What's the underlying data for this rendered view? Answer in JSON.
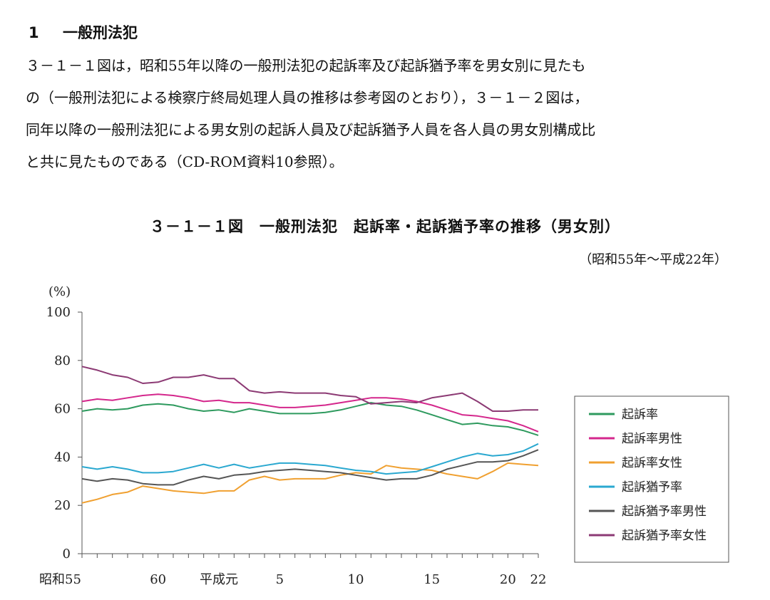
{
  "section": {
    "number": "1",
    "title": "一般刑法犯"
  },
  "paragraph": {
    "lines": [
      "３－１－１図は，昭和55年以降の一般刑法犯の起訴率及び起訴猶予率を男女別に見たも",
      "の（一般刑法犯による検察庁終局処理人員の推移は参考図のとおり），３－１－２図は，",
      "同年以降の一般刑法犯による男女別の起訴人員及び起訴猶予人員を各人員の男女別構成比",
      "と共に見たものである（CD-ROM資料10参照）。"
    ]
  },
  "figure": {
    "title": "３－１－１図　一般刑法犯　起訴率・起訴猶予率の推移（男女別）",
    "period": "（昭和55年～平成22年）"
  },
  "chart_data": {
    "type": "line",
    "ylabel": "(%)",
    "ylim": [
      0,
      100
    ],
    "yticks": [
      0,
      20,
      40,
      60,
      80,
      100
    ],
    "x": [
      1980,
      1981,
      1982,
      1983,
      1984,
      1985,
      1986,
      1987,
      1988,
      1989,
      1990,
      1991,
      1992,
      1993,
      1994,
      1995,
      1996,
      1997,
      1998,
      1999,
      2000,
      2001,
      2002,
      2003,
      2004,
      2005,
      2006,
      2007,
      2008,
      2009,
      2010
    ],
    "xticks": [
      {
        "x": 1980,
        "label": "昭和55"
      },
      {
        "x": 1985,
        "label": "60"
      },
      {
        "x": 1989,
        "label": "平成元"
      },
      {
        "x": 1993,
        "label": "5"
      },
      {
        "x": 1998,
        "label": "10"
      },
      {
        "x": 2003,
        "label": "15"
      },
      {
        "x": 2008,
        "label": "20"
      },
      {
        "x": 2010,
        "label": "22"
      }
    ],
    "legend_position": "right",
    "series": [
      {
        "name": "起訴率",
        "color": "#2e9a5e",
        "values": [
          59,
          60,
          59.5,
          60,
          61.5,
          62,
          61.5,
          60,
          59,
          59.5,
          58.5,
          60,
          59,
          58,
          58,
          58,
          58.5,
          59.5,
          61,
          62.5,
          61.5,
          61,
          59.5,
          57.5,
          55.5,
          53.5,
          54,
          53,
          52.5,
          51,
          49
        ]
      },
      {
        "name": "起訴率男性",
        "color": "#d4278c",
        "values": [
          63,
          64,
          63.5,
          64.5,
          65.5,
          66,
          65.5,
          64.5,
          63,
          63.5,
          62.5,
          62.5,
          61.5,
          60.5,
          60.5,
          61,
          61.5,
          62.5,
          63.5,
          64.5,
          64.5,
          64,
          63,
          61.5,
          59.5,
          57.5,
          57,
          56,
          55,
          53,
          50.5
        ]
      },
      {
        "name": "起訴率女性",
        "color": "#f0a030",
        "values": [
          21,
          22.5,
          24.5,
          25.5,
          28,
          27,
          26,
          25.5,
          25,
          26,
          26,
          30.5,
          32,
          30.5,
          31,
          31,
          31,
          32.5,
          33.5,
          33,
          36.5,
          35.5,
          35,
          34.5,
          33,
          32,
          31,
          34,
          37.5,
          37,
          36.5
        ]
      },
      {
        "name": "起訴猶予率",
        "color": "#2aa8d0",
        "values": [
          36,
          35,
          36,
          35,
          33.5,
          33.5,
          34,
          35.5,
          37,
          35.5,
          37,
          35.5,
          36.5,
          37.5,
          37.5,
          37,
          36.5,
          35.5,
          34.5,
          34,
          33,
          33.5,
          34,
          36,
          38,
          40,
          41.5,
          40.5,
          41,
          42.5,
          45.5
        ]
      },
      {
        "name": "起訴猶予率男性",
        "color": "#555555",
        "values": [
          31,
          30,
          31,
          30.5,
          29,
          28.5,
          28.5,
          30.5,
          32,
          31,
          32.5,
          33,
          34,
          34.5,
          35,
          34.5,
          34,
          33.5,
          32.5,
          31.5,
          30.5,
          31,
          31,
          32.5,
          35,
          36.5,
          38,
          38,
          38.5,
          40.5,
          43
        ]
      },
      {
        "name": "起訴猶予率女性",
        "color": "#8c3a74",
        "values": [
          77.5,
          76,
          74,
          73,
          70.5,
          71,
          73,
          73,
          74,
          72.5,
          72.5,
          67.5,
          66.5,
          67,
          66.5,
          66.5,
          66.5,
          65.5,
          65,
          62,
          62.5,
          63,
          62.5,
          64.5,
          65.5,
          66.5,
          63,
          59,
          59,
          59.5,
          59.5
        ]
      }
    ]
  }
}
